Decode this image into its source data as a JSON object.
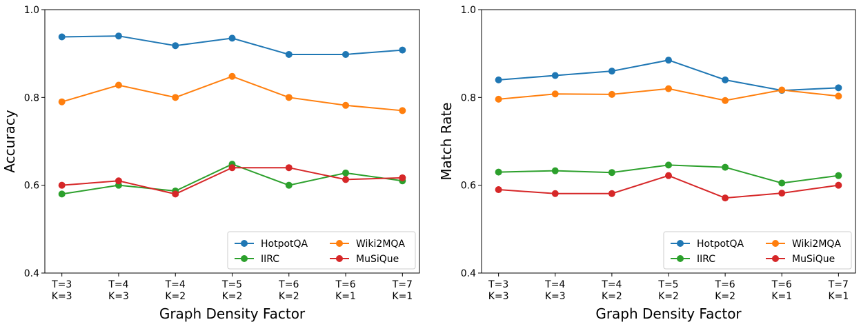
{
  "chart_data": [
    {
      "type": "line",
      "title": "",
      "xlabel": "Graph Density Factor",
      "ylabel": "Accuracy",
      "categories": [
        [
          "T=3",
          "K=3"
        ],
        [
          "T=4",
          "K=3"
        ],
        [
          "T=4",
          "K=2"
        ],
        [
          "T=5",
          "K=2"
        ],
        [
          "T=6",
          "K=2"
        ],
        [
          "T=6",
          "K=1"
        ],
        [
          "T=7",
          "K=1"
        ]
      ],
      "ylim": [
        0.4,
        1.0
      ],
      "yticks": [
        "0.4",
        "0.6",
        "0.8",
        "1.0"
      ],
      "legend_position": "lower-right",
      "series": [
        {
          "name": "HotpotQA",
          "color": "#1f77b4",
          "values": [
            0.938,
            0.94,
            0.918,
            0.935,
            0.898,
            0.898,
            0.908
          ]
        },
        {
          "name": "Wiki2MQA",
          "color": "#ff7f0e",
          "values": [
            0.79,
            0.828,
            0.8,
            0.848,
            0.8,
            0.782,
            0.77
          ]
        },
        {
          "name": "IIRC",
          "color": "#2ca02c",
          "values": [
            0.58,
            0.6,
            0.587,
            0.648,
            0.6,
            0.628,
            0.61
          ]
        },
        {
          "name": "MuSiQue",
          "color": "#d62728",
          "values": [
            0.6,
            0.61,
            0.58,
            0.64,
            0.64,
            0.613,
            0.617
          ]
        }
      ]
    },
    {
      "type": "line",
      "title": "",
      "xlabel": "Graph Density Factor",
      "ylabel": "Match Rate",
      "categories": [
        [
          "T=3",
          "K=3"
        ],
        [
          "T=4",
          "K=3"
        ],
        [
          "T=4",
          "K=2"
        ],
        [
          "T=5",
          "K=2"
        ],
        [
          "T=6",
          "K=2"
        ],
        [
          "T=6",
          "K=1"
        ],
        [
          "T=7",
          "K=1"
        ]
      ],
      "ylim": [
        0.4,
        1.0
      ],
      "yticks": [
        "0.4",
        "0.6",
        "0.8",
        "1.0"
      ],
      "legend_position": "lower-right",
      "series": [
        {
          "name": "HotpotQA",
          "color": "#1f77b4",
          "values": [
            0.84,
            0.85,
            0.86,
            0.885,
            0.84,
            0.816,
            0.822
          ]
        },
        {
          "name": "Wiki2MQA",
          "color": "#ff7f0e",
          "values": [
            0.796,
            0.808,
            0.807,
            0.82,
            0.793,
            0.817,
            0.803
          ]
        },
        {
          "name": "IIRC",
          "color": "#2ca02c",
          "values": [
            0.63,
            0.633,
            0.629,
            0.646,
            0.641,
            0.605,
            0.622
          ]
        },
        {
          "name": "MuSiQue",
          "color": "#d62728",
          "values": [
            0.59,
            0.581,
            0.581,
            0.622,
            0.571,
            0.582,
            0.6
          ]
        }
      ]
    }
  ]
}
